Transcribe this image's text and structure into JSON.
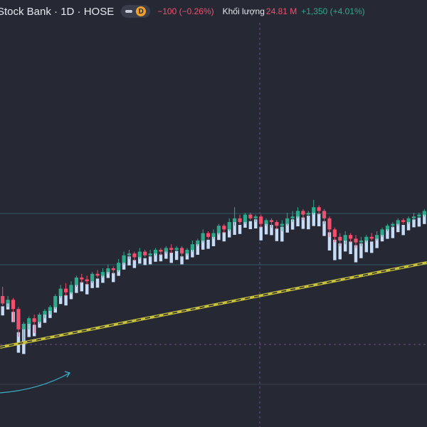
{
  "header": {
    "symbol_title": "Stock Bank · 1D · HOSE",
    "pill_badge": "D",
    "price_change": "−100 (−0.26%)",
    "volume_label": "Khối lượng",
    "volume_value": "24.81 M",
    "volume_change": "+1,350 (+4.01%)"
  },
  "colors": {
    "background": "#262934",
    "up": "#2fa98c",
    "down": "#f0506e",
    "volume_bar": "#c6dbf5",
    "trendline": "#c8c23a",
    "arrow": "#3ab0c8"
  },
  "chart_data": {
    "type": "candlestick_with_volume",
    "candles": [
      {
        "o": 40,
        "c": 36,
        "h": 45,
        "l": 35
      },
      {
        "o": 36,
        "c": 38,
        "h": 40,
        "l": 34
      },
      {
        "o": 38,
        "c": 33,
        "h": 39,
        "l": 26
      },
      {
        "o": 33,
        "c": 22,
        "h": 34,
        "l": 18
      },
      {
        "o": 22,
        "c": 25,
        "h": 26,
        "l": 15
      },
      {
        "o": 25,
        "c": 28,
        "h": 29,
        "l": 22
      },
      {
        "o": 28,
        "c": 26,
        "h": 30,
        "l": 20
      },
      {
        "o": 26,
        "c": 30,
        "h": 31,
        "l": 25
      },
      {
        "o": 30,
        "c": 32,
        "h": 33,
        "l": 28
      },
      {
        "o": 32,
        "c": 34,
        "h": 35,
        "l": 30
      },
      {
        "o": 34,
        "c": 40,
        "h": 41,
        "l": 33
      },
      {
        "o": 40,
        "c": 44,
        "h": 46,
        "l": 39
      },
      {
        "o": 44,
        "c": 42,
        "h": 47,
        "l": 40
      },
      {
        "o": 42,
        "c": 46,
        "h": 48,
        "l": 41
      },
      {
        "o": 46,
        "c": 50,
        "h": 51,
        "l": 45
      },
      {
        "o": 50,
        "c": 49,
        "h": 52,
        "l": 47
      },
      {
        "o": 49,
        "c": 48,
        "h": 51,
        "l": 46
      },
      {
        "o": 48,
        "c": 52,
        "h": 53,
        "l": 47
      },
      {
        "o": 52,
        "c": 51,
        "h": 54,
        "l": 50
      },
      {
        "o": 51,
        "c": 53,
        "h": 55,
        "l": 50
      },
      {
        "o": 53,
        "c": 55,
        "h": 57,
        "l": 52
      },
      {
        "o": 55,
        "c": 54,
        "h": 56,
        "l": 52
      },
      {
        "o": 54,
        "c": 58,
        "h": 60,
        "l": 53
      },
      {
        "o": 58,
        "c": 62,
        "h": 64,
        "l": 57
      },
      {
        "o": 62,
        "c": 63,
        "h": 65,
        "l": 60
      },
      {
        "o": 63,
        "c": 61,
        "h": 64,
        "l": 59
      },
      {
        "o": 61,
        "c": 64,
        "h": 66,
        "l": 60
      },
      {
        "o": 64,
        "c": 62,
        "h": 65,
        "l": 61
      },
      {
        "o": 62,
        "c": 63,
        "h": 65,
        "l": 61
      },
      {
        "o": 63,
        "c": 65,
        "h": 66,
        "l": 62
      },
      {
        "o": 65,
        "c": 64,
        "h": 66,
        "l": 62
      },
      {
        "o": 64,
        "c": 66,
        "h": 67,
        "l": 63
      },
      {
        "o": 66,
        "c": 65,
        "h": 68,
        "l": 63
      },
      {
        "o": 65,
        "c": 66,
        "h": 67,
        "l": 64
      },
      {
        "o": 66,
        "c": 63,
        "h": 67,
        "l": 61
      },
      {
        "o": 63,
        "c": 65,
        "h": 66,
        "l": 62
      },
      {
        "o": 65,
        "c": 68,
        "h": 70,
        "l": 64
      },
      {
        "o": 68,
        "c": 70,
        "h": 71,
        "l": 67
      },
      {
        "o": 70,
        "c": 74,
        "h": 76,
        "l": 69
      },
      {
        "o": 74,
        "c": 72,
        "h": 75,
        "l": 71
      },
      {
        "o": 72,
        "c": 74,
        "h": 76,
        "l": 71
      },
      {
        "o": 74,
        "c": 78,
        "h": 79,
        "l": 73
      },
      {
        "o": 78,
        "c": 76,
        "h": 79,
        "l": 74
      },
      {
        "o": 76,
        "c": 80,
        "h": 82,
        "l": 75
      },
      {
        "o": 80,
        "c": 82,
        "h": 88,
        "l": 78
      },
      {
        "o": 82,
        "c": 80,
        "h": 84,
        "l": 79
      },
      {
        "o": 80,
        "c": 84,
        "h": 85,
        "l": 79
      },
      {
        "o": 84,
        "c": 82,
        "h": 85,
        "l": 81
      },
      {
        "o": 82,
        "c": 83,
        "h": 84,
        "l": 80
      },
      {
        "o": 83,
        "c": 79,
        "h": 84,
        "l": 77
      },
      {
        "o": 79,
        "c": 81,
        "h": 82,
        "l": 78
      },
      {
        "o": 81,
        "c": 80,
        "h": 82,
        "l": 77
      },
      {
        "o": 80,
        "c": 78,
        "h": 81,
        "l": 76
      },
      {
        "o": 78,
        "c": 79,
        "h": 81,
        "l": 75
      },
      {
        "o": 79,
        "c": 82,
        "h": 85,
        "l": 78
      },
      {
        "o": 82,
        "c": 83,
        "h": 86,
        "l": 80
      },
      {
        "o": 83,
        "c": 86,
        "h": 88,
        "l": 82
      },
      {
        "o": 86,
        "c": 84,
        "h": 87,
        "l": 81
      },
      {
        "o": 84,
        "c": 85,
        "h": 86,
        "l": 83
      },
      {
        "o": 85,
        "c": 88,
        "h": 92,
        "l": 84
      },
      {
        "o": 88,
        "c": 86,
        "h": 89,
        "l": 84
      },
      {
        "o": 86,
        "c": 82,
        "h": 87,
        "l": 79
      },
      {
        "o": 82,
        "c": 76,
        "h": 83,
        "l": 72
      },
      {
        "o": 76,
        "c": 72,
        "h": 77,
        "l": 69
      },
      {
        "o": 72,
        "c": 70,
        "h": 74,
        "l": 67
      },
      {
        "o": 70,
        "c": 73,
        "h": 75,
        "l": 68
      },
      {
        "o": 73,
        "c": 71,
        "h": 74,
        "l": 69
      },
      {
        "o": 71,
        "c": 69,
        "h": 73,
        "l": 66
      },
      {
        "o": 69,
        "c": 70,
        "h": 72,
        "l": 67
      },
      {
        "o": 70,
        "c": 72,
        "h": 73,
        "l": 69
      },
      {
        "o": 72,
        "c": 71,
        "h": 74,
        "l": 70
      },
      {
        "o": 71,
        "c": 73,
        "h": 75,
        "l": 70
      },
      {
        "o": 73,
        "c": 76,
        "h": 77,
        "l": 72
      },
      {
        "o": 76,
        "c": 78,
        "h": 79,
        "l": 75
      },
      {
        "o": 78,
        "c": 79,
        "h": 80,
        "l": 77
      },
      {
        "o": 79,
        "c": 81,
        "h": 82,
        "l": 78
      },
      {
        "o": 81,
        "c": 80,
        "h": 82,
        "l": 79
      },
      {
        "o": 80,
        "c": 82,
        "h": 83,
        "l": 79
      },
      {
        "o": 82,
        "c": 83,
        "h": 85,
        "l": 81
      },
      {
        "o": 83,
        "c": 84,
        "h": 85,
        "l": 82
      },
      {
        "o": 84,
        "c": 86,
        "h": 87,
        "l": 83
      }
    ],
    "volume": [
      8,
      6,
      9,
      18,
      24,
      14,
      10,
      9,
      8,
      7,
      12,
      11,
      9,
      10,
      11,
      8,
      9,
      10,
      8,
      7,
      6,
      8,
      9,
      10,
      8,
      7,
      8,
      6,
      7,
      8,
      6,
      7,
      9,
      8,
      7,
      6,
      9,
      10,
      12,
      8,
      9,
      10,
      8,
      11,
      12,
      8,
      9,
      7,
      8,
      12,
      10,
      9,
      11,
      13,
      10,
      9,
      11,
      10,
      12,
      14,
      11,
      13,
      16,
      18,
      14,
      12,
      11,
      15,
      13,
      11,
      10,
      9,
      8,
      9,
      10,
      8,
      9,
      8,
      7,
      8,
      9
    ],
    "ylim": [
      0,
      120
    ]
  }
}
